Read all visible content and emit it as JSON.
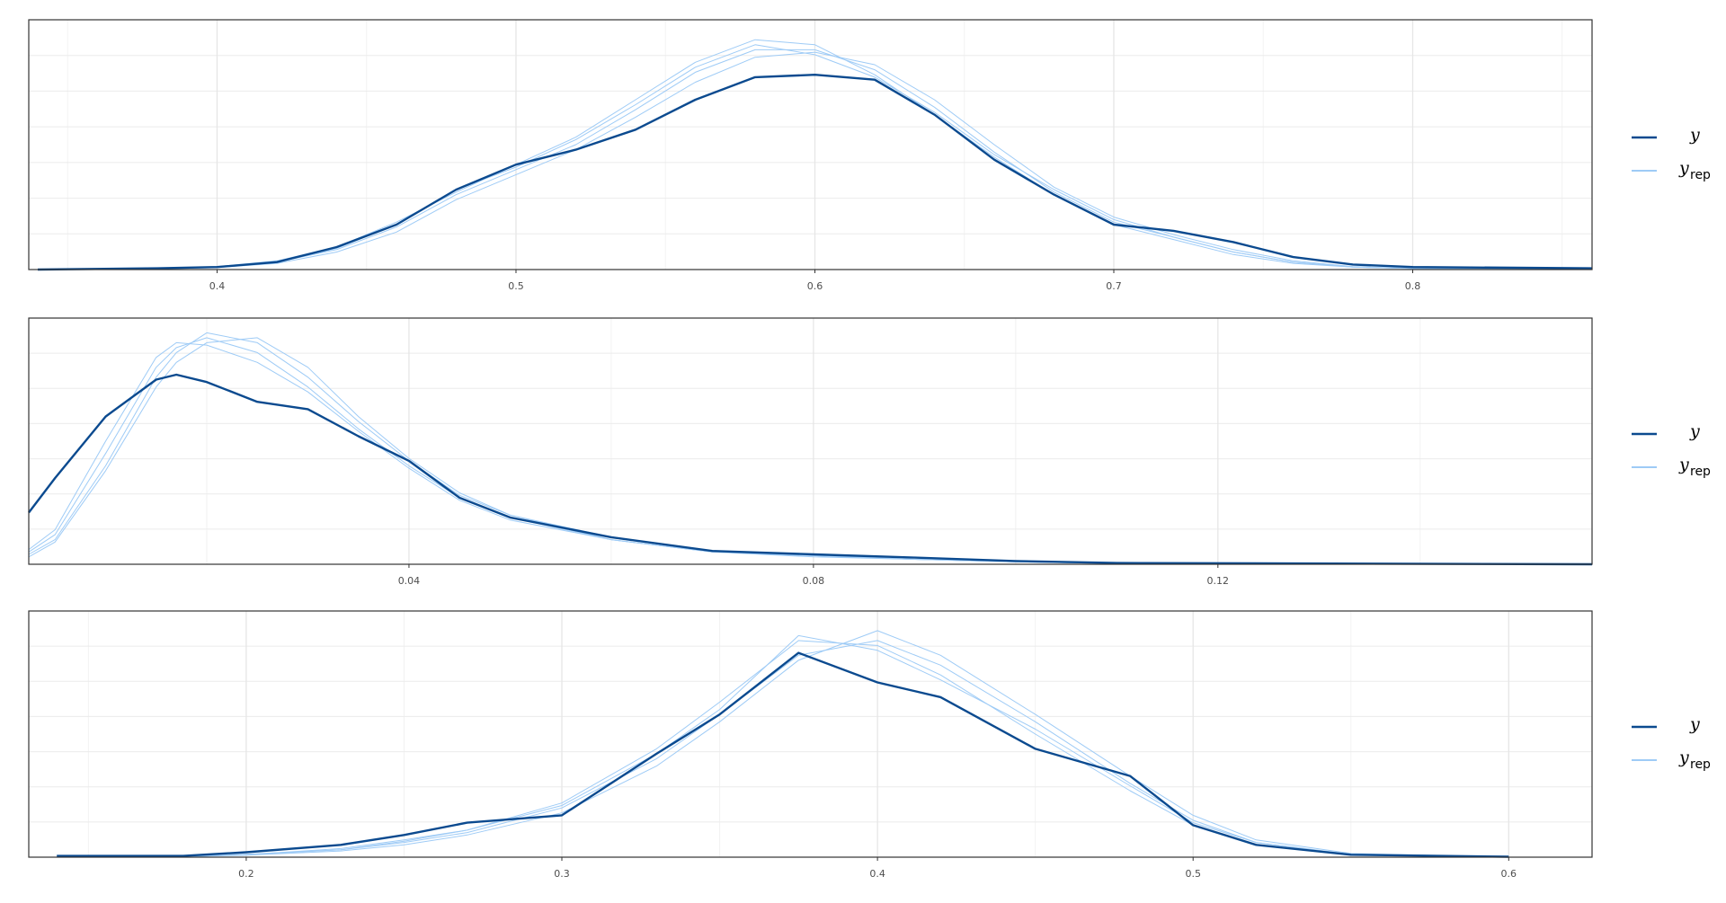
{
  "chart_data": [
    {
      "type": "line",
      "xlim": [
        0.337,
        0.86
      ],
      "ylim": [
        0,
        1
      ],
      "xticks": [
        0.4,
        0.5,
        0.6,
        0.7,
        0.8
      ],
      "grid": true,
      "x": [
        0.34,
        0.38,
        0.4,
        0.42,
        0.44,
        0.46,
        0.48,
        0.5,
        0.52,
        0.54,
        0.56,
        0.58,
        0.6,
        0.62,
        0.64,
        0.66,
        0.68,
        0.7,
        0.72,
        0.74,
        0.76,
        0.78,
        0.8,
        0.86
      ],
      "series": [
        {
          "name": "y",
          "color": "#0b4a8f",
          "values": [
            0,
            0.005,
            0.01,
            0.03,
            0.09,
            0.18,
            0.32,
            0.42,
            0.48,
            0.56,
            0.68,
            0.77,
            0.78,
            0.76,
            0.62,
            0.44,
            0.3,
            0.18,
            0.155,
            0.11,
            0.05,
            0.02,
            0.01,
            0.005
          ]
        },
        {
          "name": "y",
          "subscript": "rep",
          "color": "#9ecbf6",
          "draws": [
            [
              0,
              0.003,
              0.01,
              0.03,
              0.08,
              0.17,
              0.3,
              0.4,
              0.5,
              0.64,
              0.79,
              0.88,
              0.88,
              0.8,
              0.65,
              0.47,
              0.31,
              0.19,
              0.13,
              0.07,
              0.03,
              0.01,
              0.005,
              0
            ],
            [
              0,
              0.004,
              0.012,
              0.035,
              0.09,
              0.19,
              0.31,
              0.42,
              0.53,
              0.68,
              0.83,
              0.92,
              0.9,
              0.78,
              0.62,
              0.45,
              0.3,
              0.18,
              0.12,
              0.06,
              0.025,
              0.01,
              0.004,
              0
            ],
            [
              0,
              0.002,
              0.008,
              0.025,
              0.07,
              0.15,
              0.28,
              0.38,
              0.48,
              0.61,
              0.75,
              0.85,
              0.87,
              0.82,
              0.68,
              0.5,
              0.33,
              0.21,
              0.14,
              0.08,
              0.035,
              0.012,
              0.005,
              0
            ],
            [
              0,
              0.003,
              0.01,
              0.03,
              0.085,
              0.18,
              0.32,
              0.41,
              0.52,
              0.66,
              0.81,
              0.9,
              0.86,
              0.77,
              0.63,
              0.46,
              0.32,
              0.2,
              0.13,
              0.07,
              0.03,
              0.01,
              0.004,
              0
            ]
          ]
        }
      ]
    },
    {
      "type": "line",
      "xlim": [
        0.0024,
        0.157
      ],
      "ylim": [
        0,
        1
      ],
      "xticks": [
        0.04,
        0.08,
        0.12
      ],
      "grid": true,
      "x": [
        0.0024,
        0.005,
        0.01,
        0.015,
        0.017,
        0.02,
        0.025,
        0.03,
        0.035,
        0.04,
        0.045,
        0.05,
        0.06,
        0.07,
        0.08,
        0.09,
        0.1,
        0.11,
        0.157
      ],
      "series": [
        {
          "name": "y",
          "color": "#0b4a8f",
          "values": [
            0.21,
            0.35,
            0.6,
            0.75,
            0.77,
            0.74,
            0.66,
            0.63,
            0.52,
            0.42,
            0.27,
            0.19,
            0.11,
            0.054,
            0.04,
            0.027,
            0.013,
            0.005,
            0
          ]
        },
        {
          "name": "y",
          "subscript": "rep",
          "color": "#9ecbf6",
          "draws": [
            [
              0.05,
              0.12,
              0.45,
              0.8,
              0.88,
              0.92,
              0.86,
              0.72,
              0.55,
              0.4,
              0.27,
              0.19,
              0.1,
              0.05,
              0.035,
              0.02,
              0.01,
              0.004,
              0
            ],
            [
              0.04,
              0.1,
              0.4,
              0.76,
              0.86,
              0.94,
              0.9,
              0.76,
              0.58,
              0.42,
              0.28,
              0.2,
              0.1,
              0.05,
              0.03,
              0.02,
              0.01,
              0.003,
              0
            ],
            [
              0.06,
              0.14,
              0.5,
              0.84,
              0.9,
              0.89,
              0.82,
              0.7,
              0.54,
              0.39,
              0.26,
              0.18,
              0.1,
              0.05,
              0.035,
              0.02,
              0.01,
              0.004,
              0
            ],
            [
              0.03,
              0.09,
              0.38,
              0.72,
              0.82,
              0.9,
              0.92,
              0.8,
              0.6,
              0.43,
              0.29,
              0.2,
              0.11,
              0.055,
              0.035,
              0.02,
              0.01,
              0.004,
              0
            ]
          ]
        }
      ]
    },
    {
      "type": "line",
      "xlim": [
        0.1311,
        0.6264
      ],
      "ylim": [
        0,
        1
      ],
      "xticks": [
        0.2,
        0.3,
        0.4,
        0.5,
        0.6
      ],
      "grid": true,
      "x": [
        0.14,
        0.18,
        0.2,
        0.23,
        0.25,
        0.27,
        0.3,
        0.33,
        0.35,
        0.375,
        0.4,
        0.42,
        0.45,
        0.48,
        0.5,
        0.52,
        0.55,
        0.6
      ],
      "series": [
        {
          "name": "y",
          "color": "#0b4a8f",
          "values": [
            0.005,
            0.005,
            0.02,
            0.05,
            0.09,
            0.14,
            0.17,
            0.42,
            0.58,
            0.83,
            0.71,
            0.65,
            0.44,
            0.33,
            0.13,
            0.05,
            0.01,
            0.002
          ]
        },
        {
          "name": "y",
          "subscript": "rep",
          "color": "#9ecbf6",
          "draws": [
            [
              0,
              0.002,
              0.01,
              0.03,
              0.06,
              0.1,
              0.2,
              0.4,
              0.58,
              0.82,
              0.88,
              0.78,
              0.55,
              0.3,
              0.15,
              0.06,
              0.01,
              0
            ],
            [
              0,
              0.002,
              0.01,
              0.035,
              0.07,
              0.11,
              0.22,
              0.44,
              0.63,
              0.88,
              0.86,
              0.74,
              0.5,
              0.27,
              0.13,
              0.05,
              0.01,
              0
            ],
            [
              0,
              0.002,
              0.008,
              0.025,
              0.05,
              0.09,
              0.18,
              0.37,
              0.55,
              0.8,
              0.92,
              0.82,
              0.58,
              0.33,
              0.17,
              0.07,
              0.015,
              0
            ],
            [
              0,
              0.003,
              0.012,
              0.03,
              0.065,
              0.11,
              0.21,
              0.42,
              0.6,
              0.9,
              0.84,
              0.72,
              0.52,
              0.29,
              0.14,
              0.06,
              0.012,
              0
            ]
          ]
        }
      ]
    }
  ]
}
